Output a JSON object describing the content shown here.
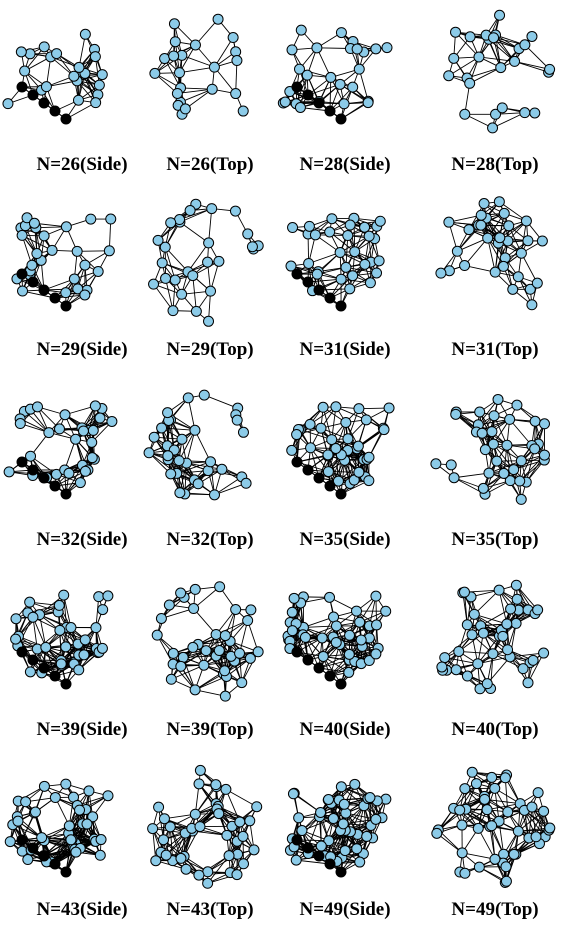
{
  "panels": [
    {
      "label": "N=26(Side)"
    },
    {
      "label": "N=26(Top)"
    },
    {
      "label": "N=28(Side)"
    },
    {
      "label": "N=28(Top)"
    },
    {
      "label": "N=29(Side)"
    },
    {
      "label": "N=29(Top)"
    },
    {
      "label": "N=31(Side)"
    },
    {
      "label": "N=31(Top)"
    },
    {
      "label": "N=32(Side)"
    },
    {
      "label": "N=32(Top)"
    },
    {
      "label": "N=35(Side)"
    },
    {
      "label": "N=35(Top)"
    },
    {
      "label": "N=39(Side)"
    },
    {
      "label": "N=39(Top)"
    },
    {
      "label": "N=40(Side)"
    },
    {
      "label": "N=40(Top)"
    },
    {
      "label": "N=43(Side)"
    },
    {
      "label": "N=43(Top)"
    },
    {
      "label": "N=49(Side)"
    },
    {
      "label": "N=49(Top)"
    }
  ]
}
